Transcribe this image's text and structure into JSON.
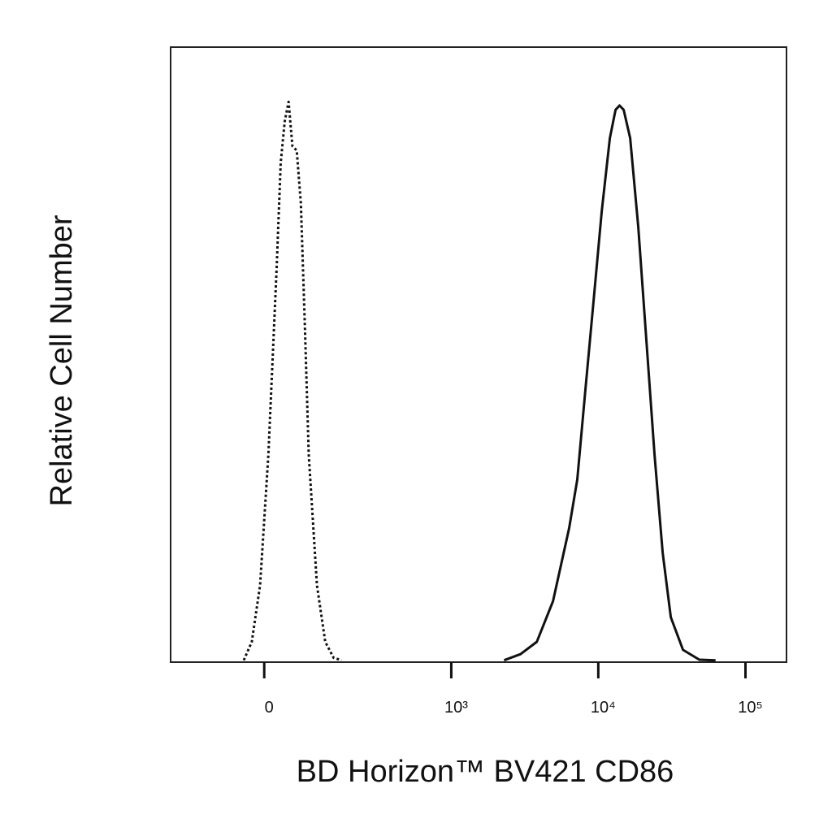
{
  "chart_data": {
    "type": "line",
    "x_label": "BD Horizon™ BV421 CD86",
    "y_label": "Relative Cell Number",
    "xscale": "biexponential",
    "xlim": [
      -220,
      190000
    ],
    "xticks": [
      0,
      {
        "value": 1000,
        "label": "10³"
      },
      {
        "value": 10000,
        "label": "10⁴"
      },
      {
        "value": 100000,
        "label": "10⁵"
      }
    ],
    "ylim": [
      0,
      100
    ],
    "grid": false,
    "series": [
      {
        "color": "#111111",
        "line_style": "dotted",
        "x": [
          -35,
          -21,
          -7,
          7,
          21,
          28,
          35,
          42,
          49,
          57,
          65,
          73,
          81,
          99,
          119,
          141,
          164
        ],
        "values": [
          0.3,
          3.3,
          12.5,
          33.7,
          64.1,
          81.2,
          87.9,
          91.1,
          83.9,
          83.2,
          74.6,
          54.8,
          33.7,
          12.5,
          3.3,
          0.7,
          0.3
        ]
      },
      {
        "color": "#111111",
        "line_style": "solid",
        "x": [
          2290,
          2960,
          3820,
          4920,
          6340,
          7200,
          8180,
          9290,
          10550,
          11990,
          13100,
          13950,
          14870,
          16460,
          18690,
          21230,
          24110,
          27380,
          31100,
          37630,
          48560,
          62620
        ],
        "values": [
          0.3,
          1.3,
          3.3,
          9.9,
          21.8,
          29.7,
          44.3,
          58.8,
          73.3,
          85.2,
          89.8,
          90.5,
          89.8,
          85.2,
          70.7,
          52.2,
          33.7,
          17.8,
          7.3,
          2.0,
          0.4,
          0.3
        ]
      }
    ]
  }
}
